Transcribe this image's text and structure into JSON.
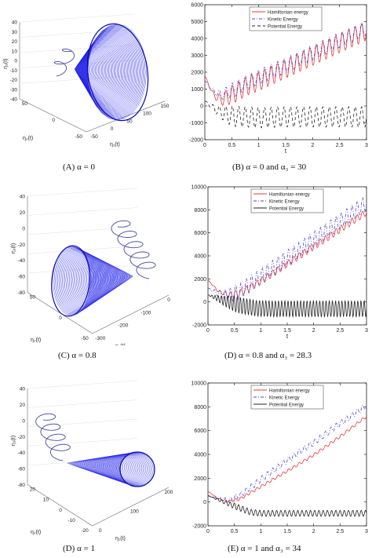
{
  "panels3d": [
    {
      "caption": "(A) α = 0",
      "zlabel": "η₃(t)",
      "xlabel": "η₁(t)",
      "ylabel": "η₂(t)",
      "zticks": [
        "40",
        "30",
        "20",
        "10",
        "0",
        "-10",
        "-20",
        "-30",
        "-40"
      ],
      "xticks": [
        "-50",
        "0",
        "50",
        "100",
        "150"
      ],
      "yticks": [
        "50",
        "0",
        "-50"
      ],
      "color": "#1f1fe8"
    },
    {
      "caption": "(C) α = 0.8",
      "zlabel": "η₃(t)",
      "xlabel": "η₁(t)",
      "ylabel": "η₂(t)",
      "zticks": [
        "40",
        "20",
        "0",
        "-20",
        "-40",
        "-60",
        "-80"
      ],
      "xticks": [
        "-300",
        "-200",
        "-100",
        "0"
      ],
      "yticks": [
        "50",
        "0",
        "-50"
      ],
      "color": "#1f1fe8"
    },
    {
      "caption": "(D) α = 1",
      "zlabel": "η₃(t)",
      "xlabel": "η₁(t)",
      "ylabel": "η₂(t)",
      "zticks": [
        "40",
        "20",
        "0",
        "-20",
        "-40",
        "-60",
        "-80"
      ],
      "xticks": [
        "0",
        "100",
        "200"
      ],
      "yticks": [
        "20",
        "10",
        "0",
        "-10",
        "-20"
      ],
      "color": "#1f1fe8"
    }
  ],
  "chart_data": [
    {
      "type": "line",
      "caption": "(B) α = 0 and α₃ = 30",
      "xlabel": "t",
      "ylabel": "",
      "xlim": [
        0,
        3
      ],
      "ylim": [
        -2000,
        6000
      ],
      "xticks": [
        0,
        0.5,
        1,
        1.5,
        2,
        2.5,
        3
      ],
      "yticks": [
        -2000,
        -1000,
        0,
        1000,
        2000,
        3000,
        4000,
        5000,
        6000
      ],
      "legend_position": "top-center",
      "series": [
        {
          "name": "Hamiltonian energy",
          "color": "#e8383b",
          "dash": "",
          "x": [
            0,
            0.15,
            0.3,
            0.5,
            0.8,
            1,
            1.5,
            2,
            2.5,
            3
          ],
          "y": [
            1800,
            700,
            350,
            650,
            1200,
            1450,
            2200,
            2950,
            3700,
            4450
          ],
          "osc_amp": 550,
          "osc_period": 0.12
        },
        {
          "name": "Kinetic Energy",
          "color": "#5050d0",
          "dash": "4,2,1,2",
          "x": [
            0,
            0.15,
            0.3,
            0.5,
            0.8,
            1,
            1.5,
            2,
            2.5,
            3
          ],
          "y": [
            1500,
            900,
            650,
            900,
            1400,
            1700,
            2400,
            3150,
            3900,
            4600
          ],
          "osc_amp": 450,
          "osc_period": 0.12
        },
        {
          "name": "Potential Energy",
          "color": "#222222",
          "dash": "4,3",
          "x": [
            0,
            0.15,
            0.3,
            0.5,
            1,
            1.5,
            2,
            2.5,
            3
          ],
          "y": [
            300,
            -100,
            -400,
            -600,
            -700,
            -650,
            -650,
            -650,
            -650
          ],
          "osc_amp": 600,
          "osc_period": 0.12
        }
      ]
    },
    {
      "type": "line",
      "caption": "(D) α = 0.8 and α₃ = 28.3",
      "xlabel": "t",
      "ylabel": "",
      "xlim": [
        0,
        3
      ],
      "ylim": [
        -2000,
        10000
      ],
      "xticks": [
        0,
        0.5,
        1,
        1.5,
        2,
        2.5,
        3
      ],
      "yticks": [
        -2000,
        0,
        2000,
        4000,
        6000,
        8000,
        10000
      ],
      "legend_position": "top-center",
      "series": [
        {
          "name": "Hamiltonian energy",
          "color": "#e8383b",
          "dash": "",
          "x": [
            0,
            0.2,
            0.4,
            0.6,
            1,
            1.5,
            2,
            2.5,
            3
          ],
          "y": [
            1900,
            900,
            600,
            750,
            1800,
            3300,
            4800,
            6300,
            7800
          ],
          "osc_amp": 300,
          "osc_period": 0.1
        },
        {
          "name": "Kinetic Energy",
          "color": "#4a4ad8",
          "dash": "4,2,1,2",
          "x": [
            0,
            0.2,
            0.4,
            0.6,
            1,
            1.5,
            2,
            2.5,
            3
          ],
          "y": [
            1200,
            700,
            600,
            900,
            2200,
            3800,
            5400,
            7000,
            8600
          ],
          "osc_amp": 700,
          "osc_period": 0.1
        },
        {
          "name": "Potential Energy",
          "color": "#222222",
          "dash": "",
          "x": [
            0,
            0.3,
            0.6,
            0.9,
            1.2,
            2,
            3
          ],
          "y": [
            600,
            100,
            -300,
            -550,
            -600,
            -600,
            -600
          ],
          "osc_amp": 700,
          "osc_period": 0.06
        }
      ]
    },
    {
      "type": "line",
      "caption": "(E) α = 1 and α₃ = 34",
      "xlabel": "",
      "ylabel": "",
      "xlim": [
        0,
        3
      ],
      "ylim": [
        -2000,
        10000
      ],
      "xticks": [
        0,
        0.5,
        1,
        1.5,
        2,
        2.5,
        3
      ],
      "yticks": [
        -2000,
        0,
        2000,
        4000,
        6000,
        8000,
        10000
      ],
      "legend_position": "top-center",
      "series": [
        {
          "name": "Hamiltonian energy",
          "color": "#e8383b",
          "dash": "",
          "x": [
            0,
            0.2,
            0.4,
            0.6,
            1,
            1.5,
            2,
            2.5,
            3
          ],
          "y": [
            900,
            250,
            50,
            250,
            1300,
            2600,
            3950,
            5500,
            7200
          ],
          "osc_amp": 120,
          "osc_period": 0.1
        },
        {
          "name": "Kinetic Energy",
          "color": "#4a4ad8",
          "dash": "4,2,1,2",
          "x": [
            0,
            0.2,
            0.4,
            0.6,
            1,
            1.5,
            2,
            2.5,
            3
          ],
          "y": [
            500,
            300,
            150,
            550,
            1900,
            3500,
            5000,
            6600,
            8100
          ],
          "osc_amp": 250,
          "osc_period": 0.1
        },
        {
          "name": "Potential Energy",
          "color": "#222222",
          "dash": "",
          "x": [
            0,
            0.3,
            0.6,
            0.8,
            1,
            2,
            3
          ],
          "y": [
            550,
            0,
            -500,
            -850,
            -950,
            -950,
            -950
          ],
          "osc_amp": 250,
          "osc_period": 0.08
        }
      ]
    }
  ]
}
